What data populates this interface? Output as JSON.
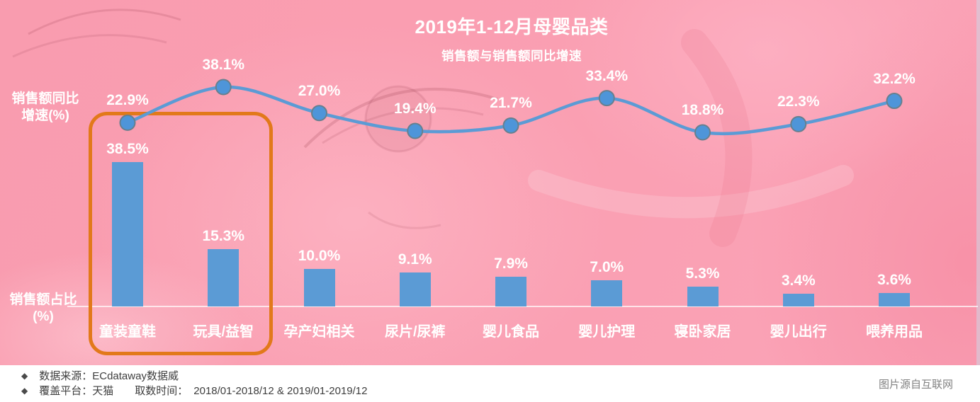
{
  "page": {
    "title": "2019年1-12月母婴品类",
    "subtitle": "销售额与销售额同比增速"
  },
  "axes": {
    "growth_label": "销售额同比\n增速(%)",
    "share_label": "销售额占比\n(%)"
  },
  "chart_data": {
    "type": "bar",
    "combo": "bar+line",
    "title": "2019年1-12月母婴品类",
    "subtitle": "销售额与销售额同比增速",
    "categories": [
      "童装童鞋",
      "玩具/益智",
      "孕产妇相关",
      "尿片/尿裤",
      "婴儿食品",
      "婴儿护理",
      "寝卧家居",
      "婴儿出行",
      "喂养用品"
    ],
    "series": [
      {
        "name": "销售额同比增速(%)",
        "chart": "line",
        "values": [
          22.9,
          38.1,
          27.0,
          19.4,
          21.7,
          33.4,
          18.8,
          22.3,
          32.2
        ],
        "color": "#5B9BD5"
      },
      {
        "name": "销售额占比(%)",
        "chart": "bar",
        "values": [
          38.5,
          15.3,
          10.0,
          9.1,
          7.9,
          7.0,
          5.3,
          3.4,
          3.6
        ],
        "color": "#5B9BD5"
      }
    ],
    "value_suffix": "%",
    "highlight": {
      "categories": [
        "童装童鞋",
        "玩具/益智"
      ],
      "color": "#E2791A"
    },
    "grid": "off",
    "legend": "none"
  },
  "colors": {
    "background_pink": "#FA9FB2",
    "bar_blue": "#5B9BD5",
    "line_blue": "#5B9BD5",
    "marker_stroke": "#66808F",
    "highlight_orange": "#E2791A",
    "label_white": "#FFFFFF"
  },
  "footer": {
    "bullet": "◆",
    "line1": "数据来源：ECdataway数据威",
    "line2_platform": "覆盖平台：天猫",
    "line2_time_label": "取数时间：",
    "line2_time_value": "2018/01-2018/12 & 2019/01-2019/12",
    "credit": "图片源自互联网"
  }
}
